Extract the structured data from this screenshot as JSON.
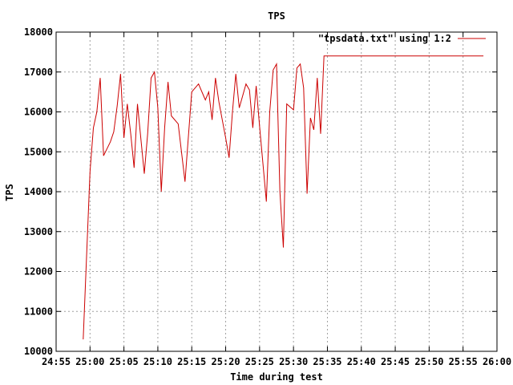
{
  "chart_data": {
    "type": "line",
    "title": "TPS",
    "xlabel": "Time during test",
    "ylabel": "TPS",
    "x_ticks": [
      "24:55",
      "25:00",
      "25:05",
      "25:10",
      "25:15",
      "25:20",
      "25:25",
      "25:30",
      "25:35",
      "25:40",
      "25:45",
      "25:50",
      "25:55",
      "26:00"
    ],
    "y_ticks": [
      "10000",
      "11000",
      "12000",
      "13000",
      "14000",
      "15000",
      "16000",
      "17000",
      "18000"
    ],
    "xlim_seconds_from_24_55": [
      0,
      65
    ],
    "ylim": [
      10000,
      18000
    ],
    "grid": true,
    "legend_position": "top-right",
    "series": [
      {
        "name": "\"tpsdata.txt\" using 1:2",
        "color": "#cc0000",
        "x_seconds_from_24_55": [
          4,
          5,
          5.5,
          6,
          6.5,
          7,
          8,
          8.5,
          9,
          9.5,
          10,
          10.5,
          11,
          11.5,
          12,
          13,
          13.5,
          14,
          14.5,
          15,
          15.5,
          16,
          16.5,
          17,
          18,
          19,
          20,
          21,
          22,
          22.5,
          23,
          23.5,
          24,
          25,
          25.5,
          26,
          26.5,
          27,
          28,
          28.5,
          29,
          29.5,
          30,
          31,
          31.5,
          32,
          32.5,
          33,
          33.5,
          34,
          35,
          35.5,
          36,
          36.5,
          37,
          37.5,
          38,
          38.5,
          39,
          39.5,
          40,
          40.5,
          41,
          41.5,
          42,
          42.5,
          43,
          43.5,
          44,
          44.5,
          45,
          45.5,
          46,
          46.5,
          47,
          47.5,
          48,
          48.5,
          49,
          49.5,
          50,
          50.5,
          51,
          51.5,
          52,
          52.5,
          53,
          53.5,
          54,
          54.5,
          55,
          55.5,
          56,
          56.5,
          57,
          57.5,
          58,
          58.5,
          59,
          59.5,
          60,
          60.5,
          61,
          61.5,
          62,
          62.5,
          63
        ],
        "y": [
          10300,
          14500,
          15600,
          16000,
          16850,
          14900,
          15250,
          15500,
          16150,
          16950,
          15350,
          16200,
          15450,
          14600,
          16200,
          14450,
          15450,
          16850,
          17000,
          16100,
          14000,
          15600,
          16750,
          15900,
          15700,
          14250,
          16500,
          16700,
          16300,
          16500,
          15800,
          16850,
          16250,
          15350,
          14850,
          16000,
          16950,
          16100,
          16700,
          16550,
          15600,
          16650,
          15650,
          13750,
          16000,
          17050,
          17200,
          14000,
          12600,
          16200,
          16050,
          17100,
          17200,
          16600,
          13950,
          15850,
          15550,
          16850,
          15450,
          17400,
          17400,
          17400,
          17400,
          17400,
          17400,
          17400,
          17400,
          17400,
          17400,
          17400,
          17400,
          17400,
          17400,
          17400,
          17400,
          17400,
          17400,
          17400,
          17400,
          17400,
          17400,
          17400,
          17400,
          17400,
          17400,
          17400,
          17400,
          17400,
          17400,
          17400,
          17400,
          17400,
          17400,
          17400,
          17400,
          17400,
          17400,
          17400,
          17400,
          17400,
          17400,
          17400,
          17400,
          17400,
          17400,
          17400,
          17400
        ]
      }
    ]
  }
}
